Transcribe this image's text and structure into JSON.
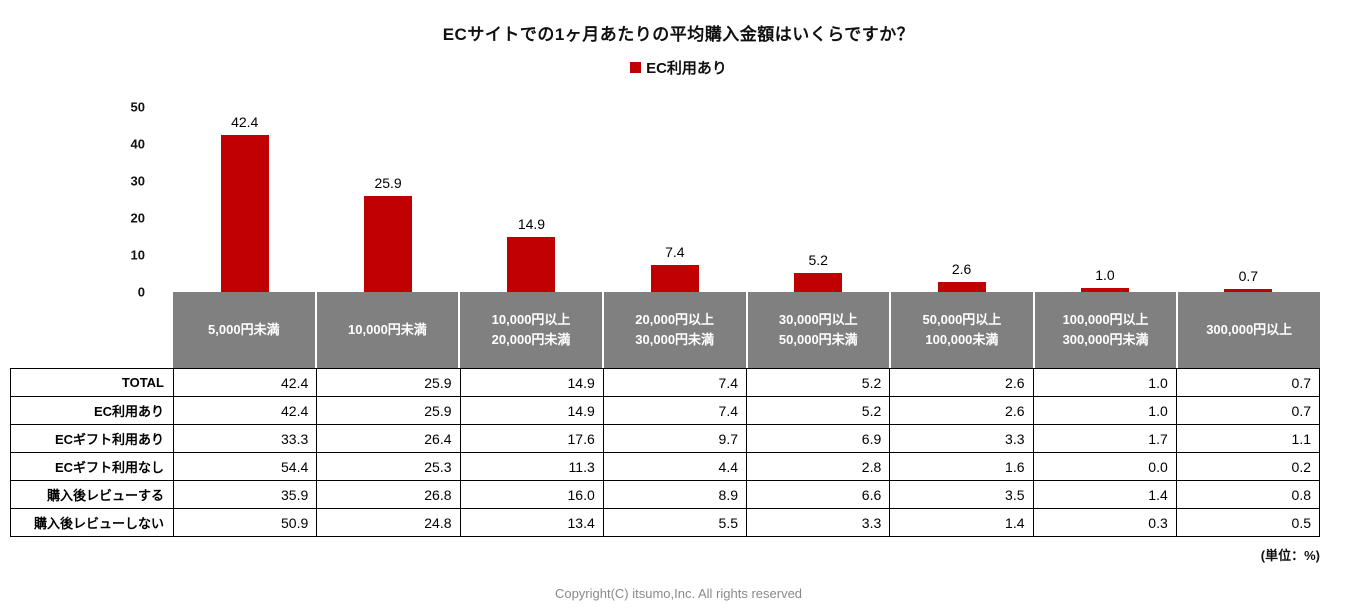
{
  "chart_data": {
    "type": "bar",
    "title": "ECサイトでの1ヶ月あたりの平均購入金額はいくらですか？",
    "categories": [
      "5,000円未満",
      "10,000円未満",
      "10,000円以上\n20,000円未満",
      "20,000円以上\n30,000円未満",
      "30,000円以上\n50,000円未満",
      "50,000円以上\n100,000未満",
      "100,000円以上\n300,000円未満",
      "300,000円以上"
    ],
    "series": [
      {
        "name": "EC利用あり",
        "color": "#c00000",
        "values": [
          42.4,
          25.9,
          14.9,
          7.4,
          5.2,
          2.6,
          1.0,
          0.7
        ]
      }
    ],
    "ylim": [
      0,
      50
    ],
    "yticks": [
      0,
      10,
      20,
      30,
      40,
      50
    ],
    "legend_position": "top",
    "grid": false,
    "xlabel": "",
    "ylabel": ""
  },
  "table": {
    "header_bg": "#808080",
    "rows": [
      {
        "label": "TOTAL",
        "values": [
          42.4,
          25.9,
          14.9,
          7.4,
          5.2,
          2.6,
          1.0,
          0.7
        ]
      },
      {
        "label": "EC利用あり",
        "values": [
          42.4,
          25.9,
          14.9,
          7.4,
          5.2,
          2.6,
          1.0,
          0.7
        ]
      },
      {
        "label": "ECギフト利用あり",
        "values": [
          33.3,
          26.4,
          17.6,
          9.7,
          6.9,
          3.3,
          1.7,
          1.1
        ]
      },
      {
        "label": "ECギフト利用なし",
        "values": [
          54.4,
          25.3,
          11.3,
          4.4,
          2.8,
          1.6,
          0.0,
          0.2
        ]
      },
      {
        "label": "購入後レビューする",
        "values": [
          35.9,
          26.8,
          16.0,
          8.9,
          6.6,
          3.5,
          1.4,
          0.8
        ]
      },
      {
        "label": "購入後レビューしない",
        "values": [
          50.9,
          24.8,
          13.4,
          5.5,
          3.3,
          1.4,
          0.3,
          0.5
        ]
      }
    ]
  },
  "footer": {
    "unit_note": "(単位：%)",
    "copyright": "Copyright(C) itsumo,Inc. All rights reserved"
  }
}
